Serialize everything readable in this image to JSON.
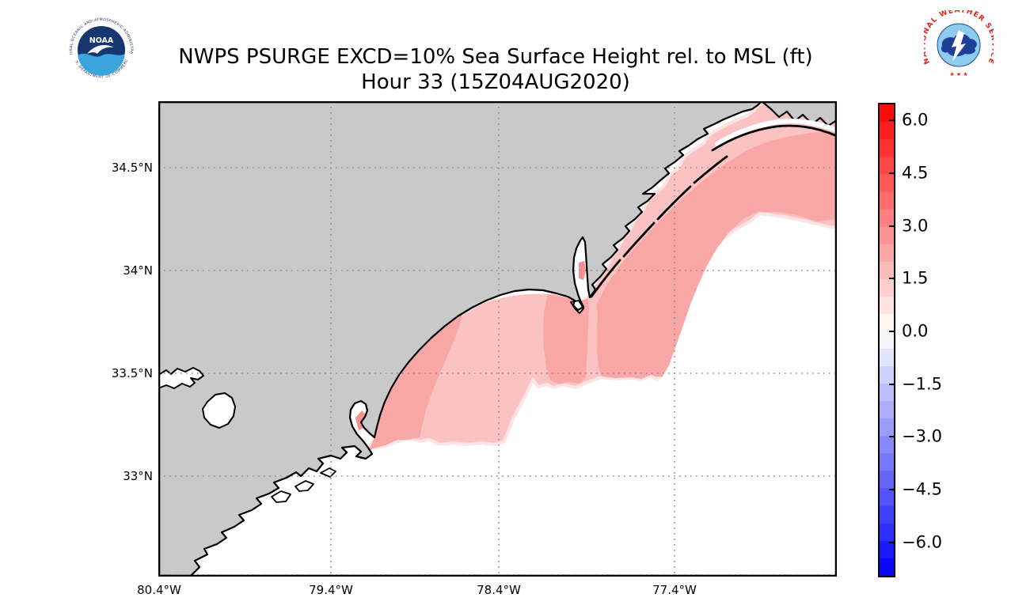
{
  "header": {
    "title_line1": "NWPS PSURGE EXCD=10% Sea Surface Height rel. to MSL (ft)",
    "title_line2": "Hour 33 (15Z04AUG2020)"
  },
  "noaa_logo": {
    "acronym": "NOAA",
    "ring_text_top": "NATIONAL OCEANIC AND ATMOSPHERIC ADMINISTRATION",
    "ring_text_bottom": "U.S. DEPARTMENT OF COMMERCE"
  },
  "nws_logo": {
    "ring_text": "NATIONAL WEATHER SERVICE",
    "stars": "★ ★ ★"
  },
  "map": {
    "x_tick_labels": [
      "80.4°W",
      "79.4°W",
      "78.4°W",
      "77.4°W"
    ],
    "y_tick_labels": [
      "34.5°N",
      "34°N",
      "33.5°N",
      "33°N"
    ],
    "colors": {
      "land": "#c9c9c9",
      "ocean": "#ffffff",
      "coastline": "#000000",
      "grid": "#8c8c8c",
      "surge_light": "#fbc2c2",
      "surge_dark": "#f9a6a6",
      "surge_fringe": "#fde4e4",
      "surge_spot": "#f98f8f"
    }
  },
  "colorbar": {
    "tick_labels": [
      "6.0",
      "4.5",
      "3.0",
      "1.5",
      "0.0",
      "−1.5",
      "−3.0",
      "−4.5",
      "−6.0"
    ],
    "tick_values": [
      6.0,
      4.5,
      3.0,
      1.5,
      0.0,
      -1.5,
      -3.0,
      -4.5,
      -6.0
    ],
    "vmax": 6.5,
    "vmin": -7.0,
    "band_step": 0.5,
    "color_positive_max": "#ff0000",
    "color_zero": "#ffffff",
    "color_negative_max": "#0000ff"
  },
  "chart_data": {
    "type": "map",
    "title": "NWPS PSURGE EXCD=10% Sea Surface Height rel. to MSL (ft)",
    "subtitle": "Hour 33 (15Z04AUG2020)",
    "units": "ft",
    "lat_ticks": [
      "34.5°N",
      "34°N",
      "33.5°N",
      "33°N"
    ],
    "lon_ticks": [
      "80.4°W",
      "79.4°W",
      "78.4°W",
      "77.4°W"
    ],
    "colorbar_ticks": [
      6.0,
      4.5,
      3.0,
      1.5,
      0.0,
      -1.5,
      -3.0,
      -4.5,
      -6.0
    ],
    "colorbar_range": [
      -7.0,
      6.5
    ],
    "legend_position": "right",
    "depicted": "Pink shading of about 1.5 to 3 ft surge hugging the SC/NC coast from Winyah Bay past Cape Fear to Bogue Inlet; white near-zero water offshore; gray land with Lakes Marion and Moultrie"
  }
}
